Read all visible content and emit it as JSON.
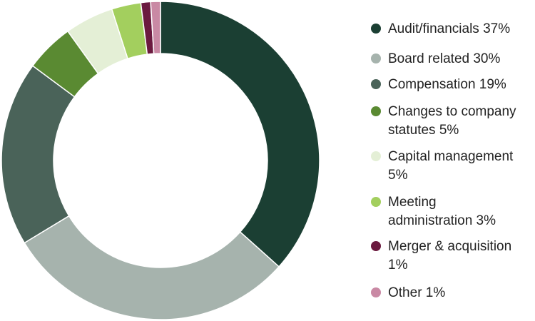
{
  "chart_data": {
    "type": "pie",
    "donut": true,
    "legend_position": "right",
    "slices": [
      {
        "label": "Audit/financials 37%",
        "value": 37,
        "color": "#1b3f33"
      },
      {
        "label": "Board related 30%",
        "value": 30,
        "color": "#a6b3ad"
      },
      {
        "label": "Compensation  19%",
        "value": 19,
        "color": "#4a6359"
      },
      {
        "label": "Changes to company\nstatutes  5%",
        "value": 5,
        "color": "#5a8a32"
      },
      {
        "label": "Capital management\n5%",
        "value": 5,
        "color": "#e4efd6"
      },
      {
        "label": "Meeting\nadministration  3%",
        "value": 3,
        "color": "#a3cf5e"
      },
      {
        "label": "Merger & acquisition\n1%",
        "value": 1,
        "color": "#6b1a3f"
      },
      {
        "label": "Other   1%",
        "value": 1,
        "color": "#c989a4"
      }
    ]
  }
}
